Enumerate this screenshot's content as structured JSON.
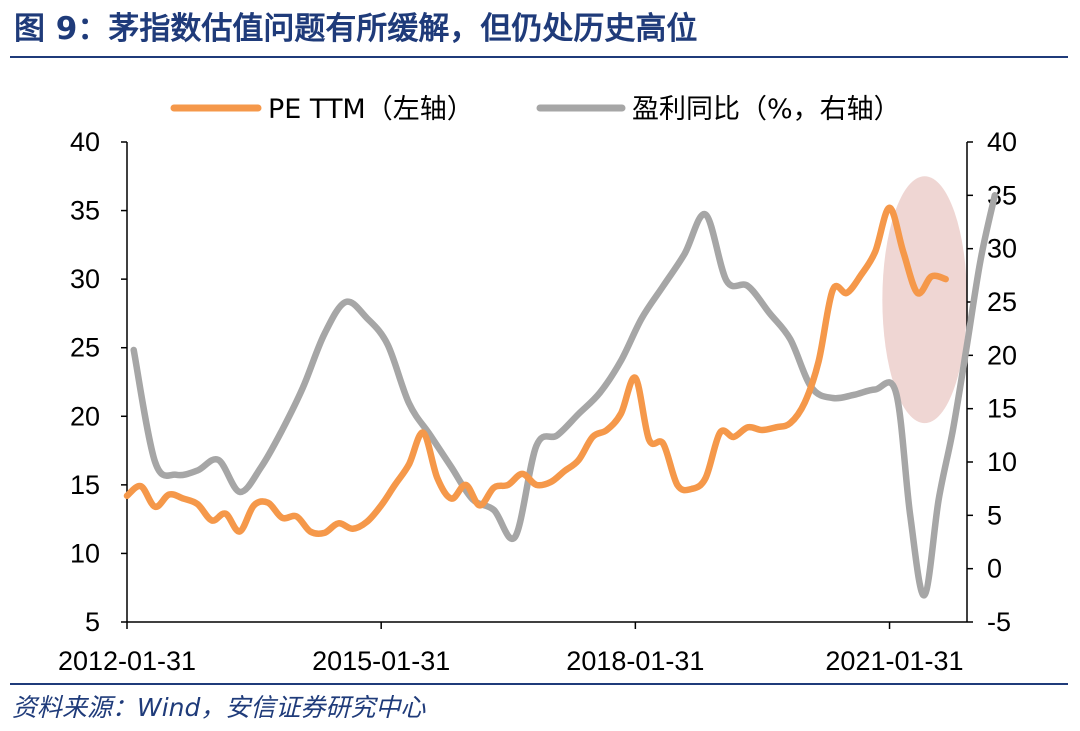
{
  "title": "图 9：茅指数估值问题有所缓解，但仍处历史高位",
  "source": "资料来源：Wind，安信证券研究中心",
  "colors": {
    "pe": "#f5984a",
    "profit": "#a6a6a6",
    "highlight": "#e9c8c4",
    "axis": "#000000",
    "brand": "#1f3b7a"
  },
  "chart_data": {
    "type": "line",
    "x_tick_labels": [
      "2012-01-31",
      "2015-01-31",
      "2018-01-31",
      "2021-01-31"
    ],
    "x_range": [
      "2012-01-31",
      "2021-12-31"
    ],
    "y_left": {
      "ticks": [
        40,
        35,
        30,
        25,
        20,
        15,
        10,
        5
      ],
      "range": [
        5,
        40
      ]
    },
    "y_right": {
      "ticks": [
        40,
        35,
        30,
        25,
        20,
        15,
        10,
        5,
        0,
        -5
      ],
      "range": [
        -5,
        40
      ]
    },
    "legend": {
      "position": "top",
      "entries": [
        "PE TTM（左轴）",
        "盈利同比（%，右轴）"
      ]
    },
    "annotation": {
      "type": "ellipse",
      "x_range": [
        "2020-12-31",
        "2021-12-31"
      ],
      "y_left_range": [
        19.5,
        37.5
      ]
    },
    "series": [
      {
        "name": "PE TTM（左轴）",
        "axis": "left",
        "points": [
          [
            "2012-01-31",
            14.2
          ],
          [
            "2012-03-31",
            14.9
          ],
          [
            "2012-05-31",
            13.4
          ],
          [
            "2012-07-31",
            14.3
          ],
          [
            "2012-09-30",
            14.0
          ],
          [
            "2012-11-30",
            13.6
          ],
          [
            "2013-01-31",
            12.4
          ],
          [
            "2013-03-31",
            12.9
          ],
          [
            "2013-05-31",
            11.6
          ],
          [
            "2013-07-31",
            13.5
          ],
          [
            "2013-09-30",
            13.7
          ],
          [
            "2013-11-30",
            12.6
          ],
          [
            "2014-01-31",
            12.7
          ],
          [
            "2014-03-31",
            11.6
          ],
          [
            "2014-05-31",
            11.5
          ],
          [
            "2014-07-31",
            12.2
          ],
          [
            "2014-09-30",
            11.8
          ],
          [
            "2014-11-30",
            12.3
          ],
          [
            "2015-01-31",
            13.5
          ],
          [
            "2015-03-31",
            15.0
          ],
          [
            "2015-05-31",
            16.5
          ],
          [
            "2015-07-31",
            18.8
          ],
          [
            "2015-09-30",
            15.5
          ],
          [
            "2015-11-30",
            14.0
          ],
          [
            "2016-01-31",
            15.0
          ],
          [
            "2016-03-31",
            13.5
          ],
          [
            "2016-05-31",
            14.8
          ],
          [
            "2016-07-31",
            15.0
          ],
          [
            "2016-09-30",
            15.8
          ],
          [
            "2016-11-30",
            15.0
          ],
          [
            "2017-01-31",
            15.2
          ],
          [
            "2017-03-31",
            16.0
          ],
          [
            "2017-05-31",
            16.8
          ],
          [
            "2017-07-31",
            18.5
          ],
          [
            "2017-09-30",
            19.0
          ],
          [
            "2017-11-30",
            20.2
          ],
          [
            "2018-01-31",
            22.8
          ],
          [
            "2018-03-31",
            18.3
          ],
          [
            "2018-05-31",
            18.0
          ],
          [
            "2018-07-31",
            15.0
          ],
          [
            "2018-09-30",
            14.7
          ],
          [
            "2018-11-30",
            15.5
          ],
          [
            "2019-01-31",
            18.8
          ],
          [
            "2019-03-31",
            18.5
          ],
          [
            "2019-05-31",
            19.2
          ],
          [
            "2019-07-31",
            19.0
          ],
          [
            "2019-09-30",
            19.2
          ],
          [
            "2019-11-30",
            19.5
          ],
          [
            "2020-01-31",
            21.0
          ],
          [
            "2020-03-31",
            24.0
          ],
          [
            "2020-05-31",
            29.2
          ],
          [
            "2020-07-31",
            29.0
          ],
          [
            "2020-09-30",
            30.3
          ],
          [
            "2020-11-30",
            32.0
          ],
          [
            "2021-01-31",
            35.2
          ],
          [
            "2021-03-31",
            32.0
          ],
          [
            "2021-05-31",
            29.0
          ],
          [
            "2021-07-31",
            30.2
          ],
          [
            "2021-09-30",
            30.0
          ]
        ]
      },
      {
        "name": "盈利同比（%，右轴）",
        "axis": "right",
        "points": [
          [
            "2012-02-29",
            20.5
          ],
          [
            "2012-05-31",
            10.0
          ],
          [
            "2012-08-31",
            8.8
          ],
          [
            "2012-11-30",
            9.2
          ],
          [
            "2013-02-28",
            10.2
          ],
          [
            "2013-05-31",
            7.2
          ],
          [
            "2013-08-31",
            9.5
          ],
          [
            "2013-11-30",
            13.0
          ],
          [
            "2014-02-28",
            17.0
          ],
          [
            "2014-05-31",
            22.0
          ],
          [
            "2014-08-31",
            25.0
          ],
          [
            "2014-11-30",
            23.5
          ],
          [
            "2015-02-28",
            21.0
          ],
          [
            "2015-05-31",
            15.5
          ],
          [
            "2015-08-31",
            12.5
          ],
          [
            "2015-11-30",
            9.5
          ],
          [
            "2016-02-29",
            6.5
          ],
          [
            "2016-05-31",
            5.5
          ],
          [
            "2016-08-31",
            3.0
          ],
          [
            "2016-11-30",
            11.5
          ],
          [
            "2017-02-28",
            12.5
          ],
          [
            "2017-05-31",
            14.5
          ],
          [
            "2017-08-31",
            16.5
          ],
          [
            "2017-11-30",
            19.5
          ],
          [
            "2018-02-28",
            23.5
          ],
          [
            "2018-05-31",
            26.5
          ],
          [
            "2018-08-31",
            29.5
          ],
          [
            "2018-11-30",
            33.2
          ],
          [
            "2019-02-28",
            27.0
          ],
          [
            "2019-05-31",
            26.5
          ],
          [
            "2019-08-31",
            24.0
          ],
          [
            "2019-11-30",
            21.5
          ],
          [
            "2020-02-29",
            17.0
          ],
          [
            "2020-05-31",
            16.0
          ],
          [
            "2020-08-31",
            16.3
          ],
          [
            "2020-11-30",
            16.8
          ],
          [
            "2021-02-28",
            16.5
          ],
          [
            "2021-04-30",
            5.0
          ],
          [
            "2021-06-30",
            -2.5
          ],
          [
            "2021-08-31",
            6.5
          ],
          [
            "2021-10-31",
            13.0
          ],
          [
            "2021-12-31",
            21.0
          ],
          [
            "2022-02-28",
            29.0
          ],
          [
            "2022-04-30",
            35.0
          ]
        ]
      }
    ]
  }
}
